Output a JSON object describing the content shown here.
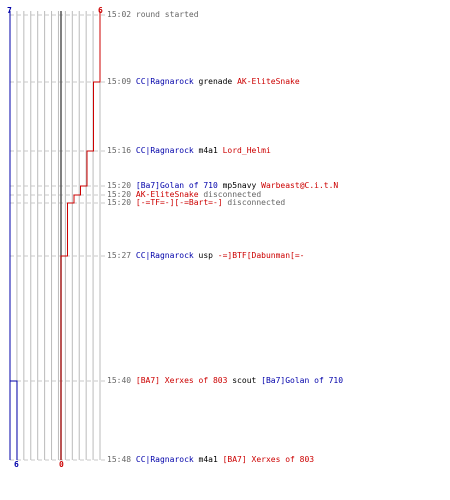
{
  "score": {
    "blue_start": "7",
    "red_start": "6",
    "blue_end": "6",
    "red_end": "0"
  },
  "colors": {
    "blue_team": "#0000aa",
    "red_team": "#cc0000",
    "grid": "#bbbbbb",
    "dash": "#c8c8c8",
    "timestamp": "#666666"
  },
  "events": [
    {
      "time": "15:02",
      "parts": [
        {
          "text": "round started",
          "team": "neutral"
        }
      ]
    },
    {
      "time": "15:09",
      "parts": [
        {
          "text": "CC|Ragnarock",
          "team": "blue"
        },
        {
          "text": " grenade ",
          "team": "weapon"
        },
        {
          "text": "AK-EliteSnake",
          "team": "red"
        }
      ]
    },
    {
      "time": "15:16",
      "parts": [
        {
          "text": "CC|Ragnarock",
          "team": "blue"
        },
        {
          "text": " m4a1 ",
          "team": "weapon"
        },
        {
          "text": "Lord_Helmi",
          "team": "red"
        }
      ]
    },
    {
      "time": "15:20",
      "parts": [
        {
          "text": "[Ba7]Golan of 710",
          "team": "blue"
        },
        {
          "text": " mp5navy ",
          "team": "weapon"
        },
        {
          "text": "Warbeast@C.i.t.N",
          "team": "red"
        }
      ]
    },
    {
      "time": "15:20",
      "parts": [
        {
          "text": "AK-EliteSnake",
          "team": "red"
        },
        {
          "text": " disconnected",
          "team": "neutral"
        }
      ]
    },
    {
      "time": "15:20",
      "parts": [
        {
          "text": "[-=TF=-][-=Bart=-]",
          "team": "red"
        },
        {
          "text": " disconnected",
          "team": "neutral"
        }
      ]
    },
    {
      "time": "15:27",
      "parts": [
        {
          "text": "CC|Ragnarock",
          "team": "blue"
        },
        {
          "text": " usp ",
          "team": "weapon"
        },
        {
          "text": "-=]BTF[Dabunman[=-",
          "team": "red"
        }
      ]
    },
    {
      "time": "15:40",
      "parts": [
        {
          "text": "[BA7] Xerxes of 803",
          "team": "red"
        },
        {
          "text": " scout ",
          "team": "weapon"
        },
        {
          "text": "[Ba7]Golan of 710",
          "team": "blue"
        }
      ]
    },
    {
      "time": "15:48",
      "parts": [
        {
          "text": "CC|Ragnarock",
          "team": "blue"
        },
        {
          "text": " m4a1 ",
          "team": "weapon"
        },
        {
          "text": "[BA7] Xerxes of 803",
          "team": "red"
        }
      ]
    }
  ],
  "progression": {
    "blue_counts": [
      7,
      7,
      7,
      7,
      7,
      7,
      7,
      6,
      6
    ],
    "red_counts": [
      6,
      5,
      4,
      3,
      2,
      1,
      0,
      0,
      0
    ]
  }
}
